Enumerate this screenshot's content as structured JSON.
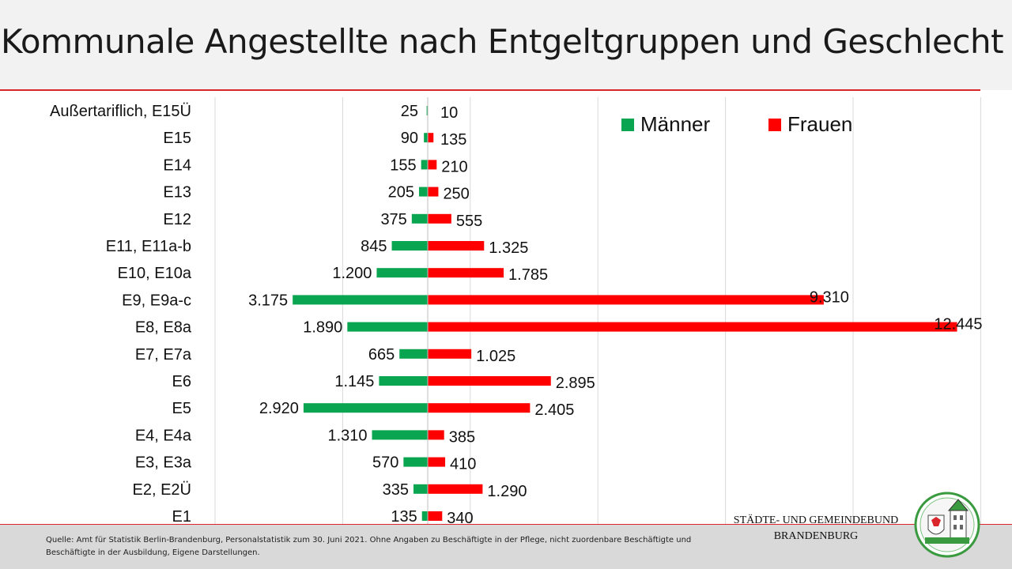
{
  "page": {
    "title": "Kommunale Angestellte nach Entgeltgruppen und Geschlecht",
    "source": "Quelle: Amt für Statistik Berlin-Brandenburg, Personalstatistik zum 30. Juni 2021. Ohne Angaben zu Beschäftigte in der Pflege, nicht zuordenbare Beschäftigte und Beschäftigte in der Ausbildung, Eigene Darstellungen.",
    "org_line1": "STÄDTE- UND GEMEINDEBUND",
    "org_line2": "BRANDENBURG"
  },
  "chart_data": {
    "type": "bar",
    "orientation": "horizontal-butterfly",
    "categories": [
      "Außertariflich, E15Ü",
      "E15",
      "E14",
      "E13",
      "E12",
      "E11, E11a-b",
      "E10, E10a",
      "E9, E9a-c",
      "E8, E8a",
      "E7, E7a",
      "E6",
      "E5",
      "E4, E4a",
      "E3, E3a",
      "E2, E2Ü",
      "E1"
    ],
    "series": [
      {
        "name": "Männer",
        "color": "#0aa550",
        "values": [
          25,
          90,
          155,
          205,
          375,
          845,
          1200,
          3175,
          1890,
          665,
          1145,
          2920,
          1310,
          570,
          335,
          135
        ],
        "labels": [
          "25",
          "90",
          "155",
          "205",
          "375",
          "845",
          "1.200",
          "3.175",
          "1.890",
          "665",
          "1.145",
          "2.920",
          "1.310",
          "570",
          "335",
          "135"
        ]
      },
      {
        "name": "Frauen",
        "color": "#ff0000",
        "values": [
          10,
          135,
          210,
          250,
          555,
          1325,
          1785,
          9310,
          12445,
          1025,
          2895,
          2405,
          385,
          410,
          1290,
          340
        ],
        "labels": [
          "10",
          "135",
          "210",
          "250",
          "555",
          "1.325",
          "1.785",
          "9.310",
          "12.445",
          "1.025",
          "2.895",
          "2.405",
          "385",
          "410",
          "1.290",
          "340"
        ]
      }
    ],
    "xlim": [
      -5000,
      15000
    ],
    "grid": true,
    "legend": "top-right"
  }
}
